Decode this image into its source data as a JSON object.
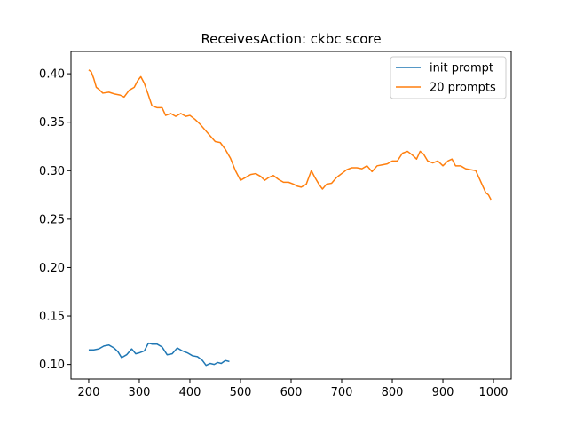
{
  "chart_data": {
    "type": "line",
    "title": "ReceivesAction: ckbc score",
    "xlabel": "",
    "ylabel": "",
    "xlim": [
      165,
      1035
    ],
    "ylim": [
      0.085,
      0.423
    ],
    "xticks": [
      200,
      300,
      400,
      500,
      600,
      700,
      800,
      900,
      1000
    ],
    "yticks": [
      0.1,
      0.15,
      0.2,
      0.25,
      0.3,
      0.35,
      0.4
    ],
    "xtick_labels": [
      "200",
      "300",
      "400",
      "500",
      "600",
      "700",
      "800",
      "900",
      "1000"
    ],
    "ytick_labels": [
      "0.10",
      "0.15",
      "0.20",
      "0.25",
      "0.30",
      "0.35",
      "0.40"
    ],
    "grid": false,
    "legend": "top-right",
    "series": [
      {
        "name": "init prompt",
        "color": "#1f77b4",
        "points": [
          [
            200,
            0.115
          ],
          [
            210,
            0.115
          ],
          [
            220,
            0.116
          ],
          [
            230,
            0.119
          ],
          [
            240,
            0.12
          ],
          [
            250,
            0.117
          ],
          [
            258,
            0.113
          ],
          [
            265,
            0.107
          ],
          [
            275,
            0.11
          ],
          [
            285,
            0.116
          ],
          [
            293,
            0.111
          ],
          [
            300,
            0.112
          ],
          [
            310,
            0.114
          ],
          [
            318,
            0.122
          ],
          [
            325,
            0.121
          ],
          [
            335,
            0.121
          ],
          [
            345,
            0.118
          ],
          [
            355,
            0.11
          ],
          [
            365,
            0.111
          ],
          [
            375,
            0.117
          ],
          [
            385,
            0.114
          ],
          [
            395,
            0.112
          ],
          [
            405,
            0.109
          ],
          [
            415,
            0.108
          ],
          [
            425,
            0.104
          ],
          [
            432,
            0.099
          ],
          [
            440,
            0.101
          ],
          [
            448,
            0.1
          ],
          [
            455,
            0.102
          ],
          [
            462,
            0.101
          ],
          [
            470,
            0.104
          ],
          [
            478,
            0.103
          ]
        ]
      },
      {
        "name": "20 prompts",
        "color": "#ff7f0e",
        "points": [
          [
            200,
            0.404
          ],
          [
            205,
            0.402
          ],
          [
            210,
            0.395
          ],
          [
            215,
            0.386
          ],
          [
            220,
            0.384
          ],
          [
            228,
            0.38
          ],
          [
            240,
            0.381
          ],
          [
            252,
            0.379
          ],
          [
            262,
            0.378
          ],
          [
            270,
            0.376
          ],
          [
            280,
            0.383
          ],
          [
            290,
            0.386
          ],
          [
            297,
            0.393
          ],
          [
            303,
            0.397
          ],
          [
            310,
            0.39
          ],
          [
            318,
            0.378
          ],
          [
            325,
            0.367
          ],
          [
            335,
            0.365
          ],
          [
            345,
            0.365
          ],
          [
            352,
            0.357
          ],
          [
            362,
            0.359
          ],
          [
            372,
            0.356
          ],
          [
            382,
            0.359
          ],
          [
            392,
            0.356
          ],
          [
            400,
            0.357
          ],
          [
            410,
            0.353
          ],
          [
            420,
            0.348
          ],
          [
            430,
            0.342
          ],
          [
            440,
            0.336
          ],
          [
            450,
            0.33
          ],
          [
            460,
            0.329
          ],
          [
            470,
            0.322
          ],
          [
            480,
            0.313
          ],
          [
            490,
            0.3
          ],
          [
            500,
            0.29
          ],
          [
            510,
            0.293
          ],
          [
            520,
            0.296
          ],
          [
            530,
            0.297
          ],
          [
            540,
            0.294
          ],
          [
            548,
            0.29
          ],
          [
            556,
            0.293
          ],
          [
            565,
            0.295
          ],
          [
            575,
            0.291
          ],
          [
            585,
            0.288
          ],
          [
            595,
            0.288
          ],
          [
            605,
            0.286
          ],
          [
            612,
            0.284
          ],
          [
            620,
            0.283
          ],
          [
            630,
            0.286
          ],
          [
            635,
            0.293
          ],
          [
            640,
            0.3
          ],
          [
            647,
            0.293
          ],
          [
            655,
            0.286
          ],
          [
            662,
            0.281
          ],
          [
            670,
            0.286
          ],
          [
            680,
            0.287
          ],
          [
            690,
            0.293
          ],
          [
            700,
            0.297
          ],
          [
            710,
            0.301
          ],
          [
            720,
            0.303
          ],
          [
            730,
            0.303
          ],
          [
            740,
            0.302
          ],
          [
            750,
            0.305
          ],
          [
            760,
            0.299
          ],
          [
            770,
            0.305
          ],
          [
            780,
            0.306
          ],
          [
            790,
            0.307
          ],
          [
            800,
            0.31
          ],
          [
            810,
            0.31
          ],
          [
            820,
            0.318
          ],
          [
            830,
            0.32
          ],
          [
            840,
            0.316
          ],
          [
            848,
            0.312
          ],
          [
            855,
            0.32
          ],
          [
            862,
            0.317
          ],
          [
            870,
            0.31
          ],
          [
            880,
            0.308
          ],
          [
            890,
            0.31
          ],
          [
            900,
            0.305
          ],
          [
            910,
            0.31
          ],
          [
            918,
            0.312
          ],
          [
            925,
            0.305
          ],
          [
            935,
            0.305
          ],
          [
            945,
            0.302
          ],
          [
            955,
            0.301
          ],
          [
            965,
            0.3
          ],
          [
            972,
            0.292
          ],
          [
            978,
            0.285
          ],
          [
            985,
            0.277
          ],
          [
            990,
            0.275
          ],
          [
            995,
            0.27
          ]
        ]
      }
    ]
  }
}
